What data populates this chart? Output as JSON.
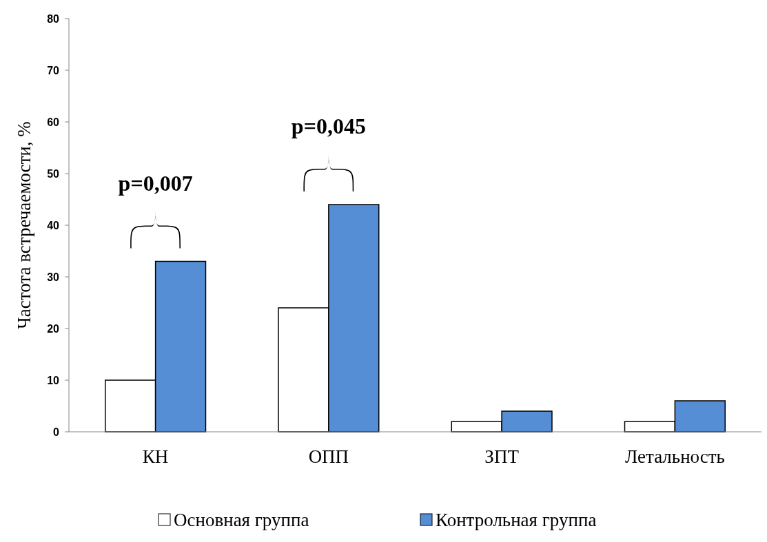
{
  "chart_data": {
    "type": "bar",
    "ylabel": "Частота встречаемости, %",
    "categories": [
      "КН",
      "ОПП",
      "ЗПТ",
      "Летальность"
    ],
    "series": [
      {
        "name": "Основная группа",
        "color": "#ffffff",
        "values": [
          10,
          24,
          2,
          2
        ]
      },
      {
        "name": "Контрольная группа",
        "color": "#558ed5",
        "values": [
          33,
          44,
          4,
          6
        ]
      }
    ],
    "ylim": [
      0,
      80
    ],
    "yticks": [
      0,
      10,
      20,
      30,
      40,
      50,
      60,
      70,
      80
    ],
    "grid": false,
    "legend": "bottom",
    "annotations": [
      "p=0,007",
      "p=0,045"
    ]
  }
}
